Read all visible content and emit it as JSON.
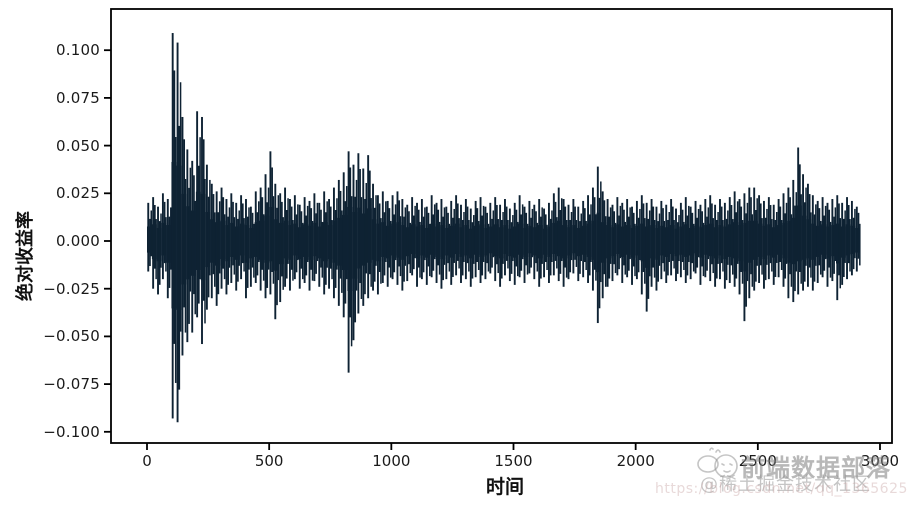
{
  "figure": {
    "background": "#ffffff",
    "spine_color": "#000000",
    "tick_label_color": "#1a1a1a"
  },
  "axes": {
    "xlabel": "时间",
    "ylabel": "绝对收益率"
  },
  "watermark": {
    "icon": "doodle-creature-icon",
    "line1": "前端数据部落",
    "line2": "@稀土掘金技术社区",
    "line3": "https://blog.csdn.net/qq_13656251"
  },
  "chart_data": {
    "type": "line",
    "title": "",
    "xlabel": "时间",
    "ylabel": "绝对收益率",
    "line_color": "#0e2233",
    "grid": false,
    "legend": null,
    "xlim": [
      -147,
      3049
    ],
    "ylim": [
      -0.106,
      0.122
    ],
    "xticks": [
      0,
      500,
      1000,
      1500,
      2000,
      2500,
      3000
    ],
    "xtick_labels": [
      "0",
      "500",
      "1000",
      "1500",
      "2000",
      "2500",
      "3000"
    ],
    "yticks": [
      0.1,
      0.075,
      0.05,
      0.025,
      0.0,
      -0.025,
      -0.05,
      -0.075,
      -0.1
    ],
    "ytick_labels": [
      "0.100",
      "0.075",
      "0.050",
      "0.025",
      "0.000",
      "−0.025",
      "−0.050",
      "−0.075",
      "−0.100"
    ],
    "x_range_of_data": [
      0,
      2900
    ],
    "extremes": {
      "max": 0.109,
      "max_x": 114,
      "min": -0.095,
      "min_x": 139
    },
    "sampling": "high-frequency return series summarized as [high, low] envelope per bucket",
    "envelope": {
      "x_start": 0,
      "x_step": 20,
      "points": [
        [
          0.02,
          -0.016
        ],
        [
          0.023,
          -0.025
        ],
        [
          0.018,
          -0.028
        ],
        [
          0.025,
          -0.02
        ],
        [
          0.022,
          -0.03
        ],
        [
          0.109,
          -0.093
        ],
        [
          0.104,
          -0.095
        ],
        [
          0.065,
          -0.06
        ],
        [
          0.048,
          -0.053
        ],
        [
          0.042,
          -0.048
        ],
        [
          0.068,
          -0.04
        ],
        [
          0.065,
          -0.054
        ],
        [
          0.04,
          -0.036
        ],
        [
          0.03,
          -0.03
        ],
        [
          0.026,
          -0.034
        ],
        [
          0.028,
          -0.025
        ],
        [
          0.022,
          -0.028
        ],
        [
          0.025,
          -0.022
        ],
        [
          0.02,
          -0.026
        ],
        [
          0.024,
          -0.02
        ],
        [
          0.022,
          -0.03
        ],
        [
          0.018,
          -0.024
        ],
        [
          0.026,
          -0.022
        ],
        [
          0.028,
          -0.026
        ],
        [
          0.035,
          -0.03
        ],
        [
          0.047,
          -0.028
        ],
        [
          0.03,
          -0.041
        ],
        [
          0.025,
          -0.032
        ],
        [
          0.028,
          -0.024
        ],
        [
          0.022,
          -0.026
        ],
        [
          0.024,
          -0.02
        ],
        [
          0.019,
          -0.025
        ],
        [
          0.023,
          -0.022
        ],
        [
          0.021,
          -0.026
        ],
        [
          0.025,
          -0.021
        ],
        [
          0.02,
          -0.024
        ],
        [
          0.026,
          -0.028
        ],
        [
          0.022,
          -0.025
        ],
        [
          0.028,
          -0.03
        ],
        [
          0.032,
          -0.034
        ],
        [
          0.036,
          -0.04
        ],
        [
          0.047,
          -0.069
        ],
        [
          0.04,
          -0.052
        ],
        [
          0.046,
          -0.038
        ],
        [
          0.038,
          -0.034
        ],
        [
          0.045,
          -0.03
        ],
        [
          0.03,
          -0.026
        ],
        [
          0.024,
          -0.028
        ],
        [
          0.026,
          -0.022
        ],
        [
          0.021,
          -0.024
        ],
        [
          0.024,
          -0.02
        ],
        [
          0.026,
          -0.023
        ],
        [
          0.022,
          -0.026
        ],
        [
          0.019,
          -0.021
        ],
        [
          0.023,
          -0.018
        ],
        [
          0.02,
          -0.024
        ],
        [
          0.022,
          -0.02
        ],
        [
          0.018,
          -0.023
        ],
        [
          0.024,
          -0.019
        ],
        [
          0.02,
          -0.022
        ],
        [
          0.022,
          -0.025
        ],
        [
          0.018,
          -0.02
        ],
        [
          0.021,
          -0.023
        ],
        [
          0.024,
          -0.018
        ],
        [
          0.019,
          -0.022
        ],
        [
          0.022,
          -0.02
        ],
        [
          0.017,
          -0.024
        ],
        [
          0.021,
          -0.019
        ],
        [
          0.023,
          -0.022
        ],
        [
          0.018,
          -0.02
        ],
        [
          0.02,
          -0.017
        ],
        [
          0.023,
          -0.021
        ],
        [
          0.019,
          -0.024
        ],
        [
          0.022,
          -0.018
        ],
        [
          0.017,
          -0.021
        ],
        [
          0.02,
          -0.023
        ],
        [
          0.024,
          -0.019
        ],
        [
          0.018,
          -0.022
        ],
        [
          0.021,
          -0.017
        ],
        [
          0.019,
          -0.02
        ],
        [
          0.022,
          -0.024
        ],
        [
          0.017,
          -0.019
        ],
        [
          0.02,
          -0.022
        ],
        [
          0.025,
          -0.018
        ],
        [
          0.028,
          -0.021
        ],
        [
          0.022,
          -0.024
        ],
        [
          0.019,
          -0.02
        ],
        [
          0.022,
          -0.017
        ],
        [
          0.018,
          -0.021
        ],
        [
          0.021,
          -0.019
        ],
        [
          0.024,
          -0.022
        ],
        [
          0.028,
          -0.026
        ],
        [
          0.039,
          -0.043
        ],
        [
          0.026,
          -0.03
        ],
        [
          0.022,
          -0.024
        ],
        [
          0.019,
          -0.021
        ],
        [
          0.023,
          -0.018
        ],
        [
          0.02,
          -0.022
        ],
        [
          0.022,
          -0.019
        ],
        [
          0.018,
          -0.023
        ],
        [
          0.021,
          -0.02
        ],
        [
          0.024,
          -0.028
        ],
        [
          0.02,
          -0.037
        ],
        [
          0.022,
          -0.024
        ],
        [
          0.018,
          -0.026
        ],
        [
          0.021,
          -0.02
        ],
        [
          0.019,
          -0.022
        ],
        [
          0.022,
          -0.018
        ],
        [
          0.017,
          -0.021
        ],
        [
          0.02,
          -0.019
        ],
        [
          0.023,
          -0.022
        ],
        [
          0.018,
          -0.02
        ],
        [
          0.021,
          -0.017
        ],
        [
          0.019,
          -0.023
        ],
        [
          0.022,
          -0.019
        ],
        [
          0.024,
          -0.021
        ],
        [
          0.019,
          -0.024
        ],
        [
          0.022,
          -0.02
        ],
        [
          0.02,
          -0.025
        ],
        [
          0.023,
          -0.022
        ],
        [
          0.026,
          -0.024
        ],
        [
          0.022,
          -0.028
        ],
        [
          0.025,
          -0.042
        ],
        [
          0.028,
          -0.03
        ],
        [
          0.028,
          -0.026
        ],
        [
          0.024,
          -0.022
        ],
        [
          0.021,
          -0.025
        ],
        [
          0.023,
          -0.02
        ],
        [
          0.019,
          -0.023
        ],
        [
          0.022,
          -0.019
        ],
        [
          0.025,
          -0.024
        ],
        [
          0.028,
          -0.03
        ],
        [
          0.032,
          -0.032
        ],
        [
          0.049,
          -0.028
        ],
        [
          0.035,
          -0.026
        ],
        [
          0.03,
          -0.024
        ],
        [
          0.024,
          -0.026
        ],
        [
          0.021,
          -0.022
        ],
        [
          0.023,
          -0.019
        ],
        [
          0.02,
          -0.024
        ],
        [
          0.022,
          -0.021
        ],
        [
          0.024,
          -0.031
        ],
        [
          0.02,
          -0.023
        ],
        [
          0.023,
          -0.02
        ],
        [
          0.021,
          -0.018
        ],
        [
          0.018,
          -0.016
        ]
      ]
    }
  }
}
